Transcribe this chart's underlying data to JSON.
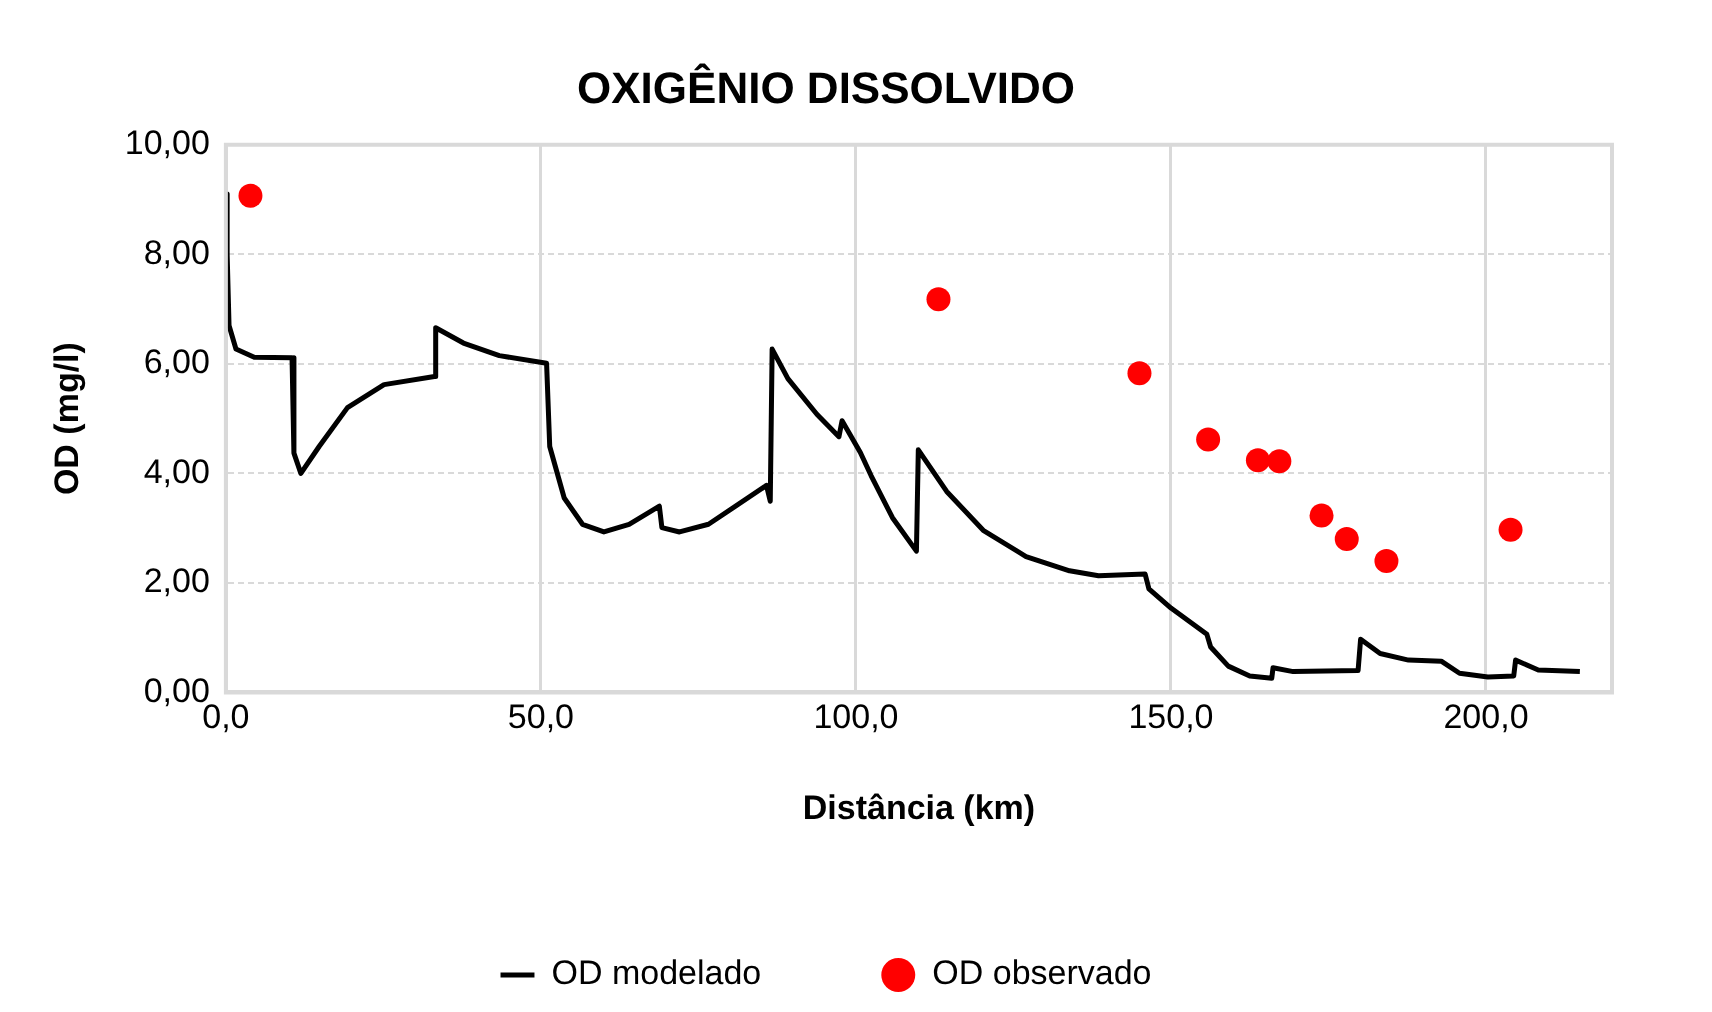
{
  "chart_data": {
    "type": "line",
    "title": "OXIGÊNIO DISSOLVIDO",
    "xlabel": "Distância (km)",
    "ylabel": "OD (mg/l)",
    "xlim": [
      0,
      220
    ],
    "xticks": [
      {
        "value": 0,
        "label": "0,0"
      },
      {
        "value": 50,
        "label": "50,0"
      },
      {
        "value": 100,
        "label": "100,0"
      },
      {
        "value": 150,
        "label": "150,0"
      },
      {
        "value": 200,
        "label": "200,0"
      }
    ],
    "ylim": [
      0,
      10
    ],
    "yticks": [
      {
        "value": 0,
        "label": "0,00"
      },
      {
        "value": 2,
        "label": "2,00"
      },
      {
        "value": 4,
        "label": "4,00"
      },
      {
        "value": 6,
        "label": "6,00"
      },
      {
        "value": 8,
        "label": "8,00"
      },
      {
        "value": 10,
        "label": "10,00"
      }
    ],
    "grid": true,
    "legend": "bottom",
    "series": [
      {
        "name": "OD modelado",
        "type": "line",
        "color": "#000000",
        "marker": "none",
        "line_style": "solid",
        "x": [
          0.2,
          0.2,
          0.5,
          1.6,
          4.5,
          10.5,
          10.8,
          11.9,
          14.8,
          19.3,
          25.1,
          33.1,
          33.3,
          37.7,
          43.4,
          50.9,
          51.4,
          53.7,
          56.6,
          60,
          64,
          68.8,
          69.2,
          72,
          76.6,
          85.8,
          86.4,
          86.7,
          89.2,
          93.8,
          97.3,
          97.8,
          100.7,
          102.4,
          105.8,
          109.6,
          109.9,
          114.4,
          120.2,
          127,
          133.9,
          138.5,
          145.9,
          146.5,
          150,
          155.7,
          156.3,
          159.1,
          162.5,
          166,
          166.2,
          169.4,
          179.7,
          180.1,
          183.2,
          187.7,
          192.9,
          195.8,
          200.3,
          204.4,
          204.7,
          208.3,
          214.9
        ],
        "values": [
          9.1,
          8.0,
          6.7,
          6.27,
          6.12,
          6.11,
          4.37,
          4.0,
          4.49,
          5.2,
          5.62,
          5.77,
          6.66,
          6.38,
          6.15,
          6.01,
          4.49,
          3.55,
          3.07,
          2.93,
          3.07,
          3.4,
          3.01,
          2.93,
          3.07,
          3.78,
          3.49,
          6.27,
          5.73,
          5.08,
          4.67,
          4.96,
          4.38,
          3.96,
          3.19,
          2.58,
          4.43,
          3.67,
          2.96,
          2.48,
          2.22,
          2.13,
          2.16,
          1.89,
          1.54,
          1.06,
          0.83,
          0.48,
          0.3,
          0.26,
          0.45,
          0.38,
          0.4,
          0.97,
          0.71,
          0.59,
          0.57,
          0.35,
          0.28,
          0.3,
          0.59,
          0.41,
          0.38
        ]
      },
      {
        "name": "OD observado",
        "type": "scatter",
        "color": "#ff0000",
        "marker": "circle",
        "x": [
          3.9,
          113.1,
          145,
          155.9,
          163.8,
          167.2,
          173.9,
          177.9,
          184.2,
          203.9
        ],
        "values": [
          9.07,
          7.18,
          5.83,
          4.62,
          4.24,
          4.22,
          3.23,
          2.8,
          2.4,
          2.97
        ]
      }
    ]
  }
}
